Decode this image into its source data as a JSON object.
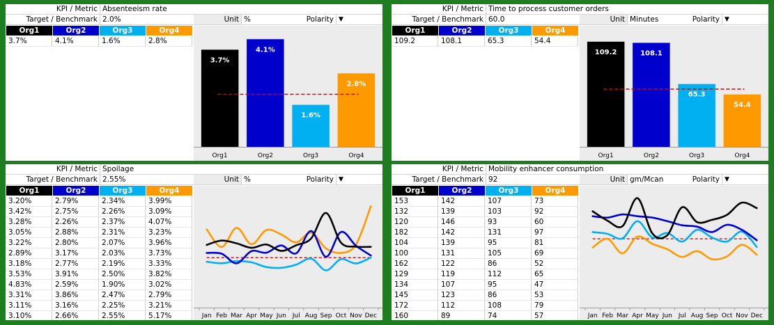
{
  "labels": {
    "kpi": "KPI / Metric",
    "target": "Target / Benchmark",
    "unit": "Unit",
    "polarity": "Polarity",
    "polarity_symbol": "▼"
  },
  "orgs": [
    {
      "name": "Org1",
      "color": "#000000"
    },
    {
      "name": "Org2",
      "color": "#0000cc"
    },
    {
      "name": "Org3",
      "color": "#00b0f0"
    },
    {
      "name": "Org4",
      "color": "#ff9900"
    }
  ],
  "colors": {
    "target_line": "#dd0000",
    "chart_bg": "#ececec",
    "frame": "#1e7d1e"
  },
  "panels": [
    {
      "metric": "Absenteeism rate",
      "target": "2.0%",
      "unit": "%",
      "rows": [
        [
          "3.7%",
          "4.1%",
          "1.6%",
          "2.8%"
        ]
      ],
      "chart_data": {
        "type": "bar",
        "categories": [
          "Org1",
          "Org2",
          "Org3",
          "Org4"
        ],
        "values": [
          3.7,
          4.1,
          1.6,
          2.8
        ],
        "value_labels": [
          "3.7%",
          "4.1%",
          "1.6%",
          "2.8%"
        ],
        "target": 2.0,
        "ylim": [
          0,
          4.4
        ]
      }
    },
    {
      "metric": "Time to process customer orders",
      "target": "60.0",
      "unit": "Minutes",
      "rows": [
        [
          "109.2",
          "108.1",
          "65.3",
          "54.4"
        ]
      ],
      "chart_data": {
        "type": "bar",
        "categories": [
          "Org1",
          "Org2",
          "Org3",
          "Org4"
        ],
        "values": [
          109.2,
          108.1,
          65.3,
          54.4
        ],
        "value_labels": [
          "109.2",
          "108.1",
          "65.3",
          "54.4"
        ],
        "target": 60.0,
        "ylim": [
          0,
          120
        ]
      }
    },
    {
      "metric": "Spoilage",
      "target": "2.55%",
      "unit": "%",
      "rows": [
        [
          "3.20%",
          "2.79%",
          "2.34%",
          "3.99%"
        ],
        [
          "3.42%",
          "2.75%",
          "2.26%",
          "3.09%"
        ],
        [
          "3.28%",
          "2.26%",
          "2.37%",
          "4.07%"
        ],
        [
          "3.05%",
          "2.88%",
          "2.31%",
          "3.23%"
        ],
        [
          "3.22%",
          "2.80%",
          "2.07%",
          "3.96%"
        ],
        [
          "2.89%",
          "3.17%",
          "2.03%",
          "3.73%"
        ],
        [
          "3.18%",
          "2.77%",
          "2.19%",
          "3.33%"
        ],
        [
          "3.53%",
          "3.91%",
          "2.50%",
          "3.82%"
        ],
        [
          "4.83%",
          "2.59%",
          "1.90%",
          "3.02%"
        ],
        [
          "3.31%",
          "3.86%",
          "2.47%",
          "2.79%"
        ],
        [
          "3.11%",
          "3.16%",
          "2.25%",
          "3.21%"
        ],
        [
          "3.10%",
          "2.66%",
          "2.55%",
          "5.17%"
        ]
      ],
      "chart_data": {
        "type": "line",
        "categories": [
          "Jan",
          "Feb",
          "Mar",
          "Apr",
          "May",
          "Jun",
          "Jul",
          "Aug",
          "Sep",
          "Oct",
          "Nov",
          "Dec"
        ],
        "series": [
          {
            "values": [
              3.2,
              3.42,
              3.28,
              3.05,
              3.22,
              2.89,
              3.18,
              3.53,
              4.83,
              3.31,
              3.11,
              3.1
            ]
          },
          {
            "values": [
              2.79,
              2.75,
              2.26,
              2.88,
              2.8,
              3.17,
              2.77,
              3.91,
              2.59,
              3.86,
              3.16,
              2.66
            ]
          },
          {
            "values": [
              2.34,
              2.26,
              2.37,
              2.31,
              2.07,
              2.03,
              2.19,
              2.5,
              1.9,
              2.47,
              2.25,
              2.55
            ]
          },
          {
            "values": [
              3.99,
              3.09,
              4.07,
              3.23,
              3.96,
              3.73,
              3.33,
              3.82,
              3.02,
              2.79,
              3.21,
              5.17
            ]
          }
        ],
        "target": 2.55,
        "ylim": [
          0,
          6.0
        ]
      }
    },
    {
      "metric": "Mobility enhancer consumption",
      "target": "92",
      "unit": "gm/Mcan",
      "rows": [
        [
          "153",
          "142",
          "107",
          "73"
        ],
        [
          "132",
          "139",
          "103",
          "92"
        ],
        [
          "120",
          "146",
          "93",
          "60"
        ],
        [
          "182",
          "142",
          "131",
          "97"
        ],
        [
          "104",
          "139",
          "95",
          "81"
        ],
        [
          "100",
          "131",
          "105",
          "69"
        ],
        [
          "162",
          "122",
          "86",
          "52"
        ],
        [
          "129",
          "119",
          "112",
          "65"
        ],
        [
          "134",
          "107",
          "95",
          "47"
        ],
        [
          "145",
          "123",
          "86",
          "53"
        ],
        [
          "172",
          "112",
          "108",
          "79"
        ],
        [
          "160",
          "89",
          "74",
          "57"
        ]
      ],
      "chart_data": {
        "type": "line",
        "categories": [
          "Jan",
          "Feb",
          "Mar",
          "Apr",
          "May",
          "Jun",
          "Jul",
          "Aug",
          "Sep",
          "Oct",
          "Nov",
          "Dec"
        ],
        "series": [
          {
            "values": [
              153,
              132,
              120,
              182,
              104,
              100,
              162,
              129,
              134,
              145,
              172,
              160
            ]
          },
          {
            "values": [
              142,
              139,
              146,
              142,
              139,
              131,
              122,
              119,
              107,
              123,
              112,
              89
            ]
          },
          {
            "values": [
              107,
              103,
              93,
              131,
              95,
              105,
              86,
              112,
              95,
              86,
              108,
              74
            ]
          },
          {
            "values": [
              73,
              92,
              60,
              97,
              81,
              69,
              52,
              65,
              47,
              53,
              79,
              57
            ]
          }
        ],
        "target": 92,
        "ylim": [
          -60,
          200
        ]
      }
    }
  ]
}
